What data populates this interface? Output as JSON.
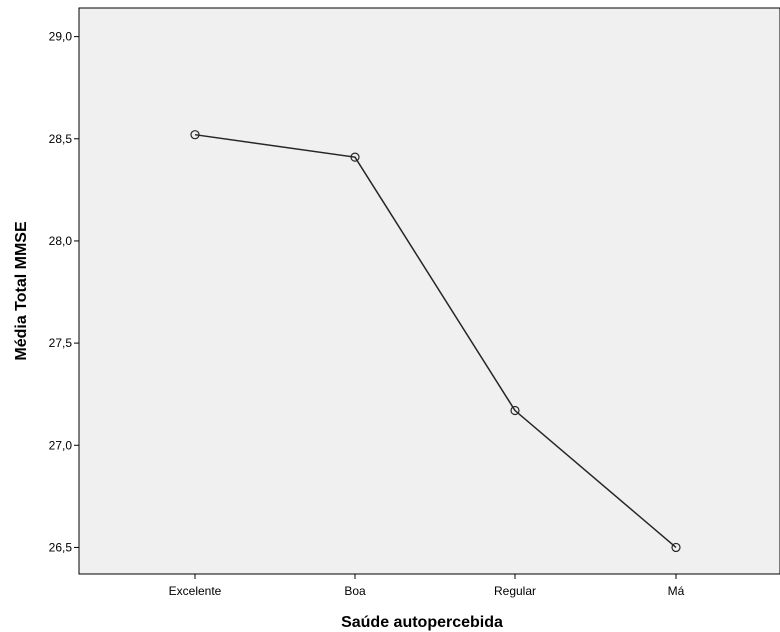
{
  "chart_data": {
    "type": "line",
    "xlabel": "Saúde autopercebida",
    "ylabel": "Média Total MMSE",
    "categories": [
      "Excelente",
      "Boa",
      "Regular",
      "Má"
    ],
    "series": [
      {
        "values": [
          28.52,
          28.41,
          27.17,
          26.5
        ]
      }
    ],
    "ylim": [
      26.37,
      29.14
    ],
    "yticks": [
      "29,0",
      "28,5",
      "28,0",
      "27,5",
      "27,0",
      "26,5"
    ],
    "ytick_values": [
      29.0,
      28.5,
      28.0,
      27.5,
      27.0,
      26.5
    ],
    "grid": false,
    "legend": "none",
    "marker": "open-circle",
    "plot_background": "#f0f0f0",
    "line_color": "#262626"
  }
}
